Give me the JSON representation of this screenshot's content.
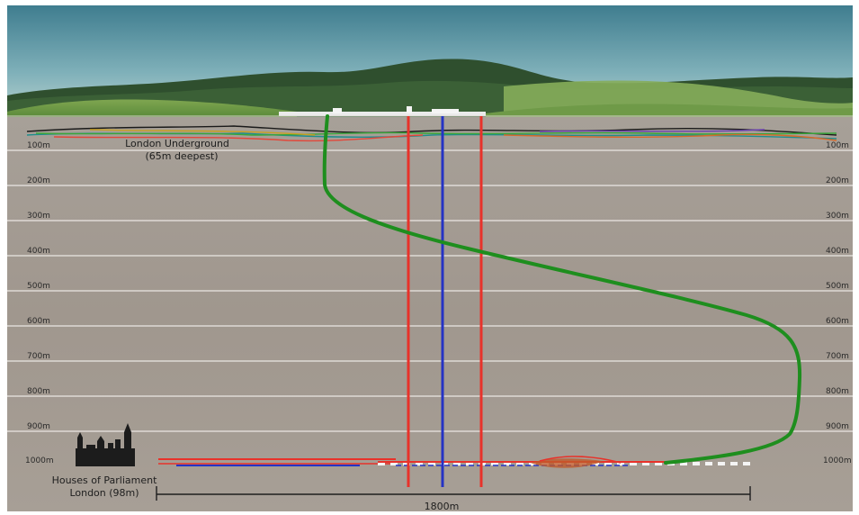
{
  "depth_markers": [
    "100m",
    "200m",
    "300m",
    "400m",
    "500m",
    "600m",
    "700m",
    "800m",
    "900m",
    "1000m"
  ],
  "annotations": {
    "underground_line1": "London Underground",
    "underground_line2": "(65m deepest)",
    "parliament_line1": "Houses of Parliament",
    "parliament_line2": "London (98m)"
  },
  "scale_bar": {
    "label": "1800m"
  },
  "colors": {
    "sky_top": "#3f7d8f",
    "ground": "#a49b93",
    "depth_line": "#f2efec",
    "well_red": "#e8322a",
    "well_blue": "#2533c4",
    "well_green": "#1e8e1e"
  }
}
